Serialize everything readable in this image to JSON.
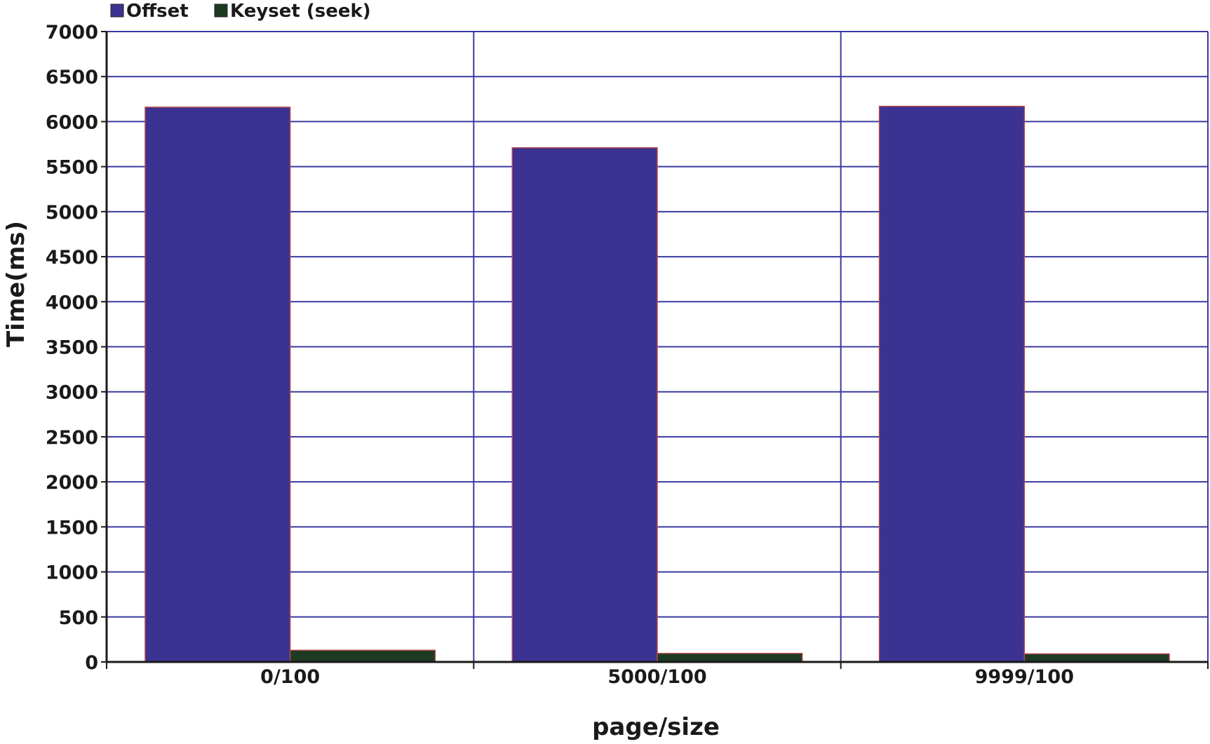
{
  "chart_data": {
    "type": "bar",
    "categories": [
      "0/100",
      "5000/100",
      "9999/100"
    ],
    "series": [
      {
        "name": "Offset",
        "values": [
          6160,
          5710,
          6170
        ],
        "color": "#3b3291"
      },
      {
        "name": "Keyset (seek)",
        "values": [
          130,
          95,
          90
        ],
        "color": "#1c3b22"
      }
    ],
    "xlabel": "page/size",
    "ylabel": "Time(ms)",
    "ylim": [
      0,
      7000
    ],
    "yticks": [
      0,
      500,
      1000,
      1500,
      2000,
      2500,
      3000,
      3500,
      4000,
      4500,
      5000,
      5500,
      6000,
      6500,
      7000
    ],
    "grid": true,
    "legend": "top-left",
    "colors": {
      "grid": "#3a3aa0",
      "axis": "#1a1a1a",
      "bar_outline": "#b34a4a"
    }
  }
}
